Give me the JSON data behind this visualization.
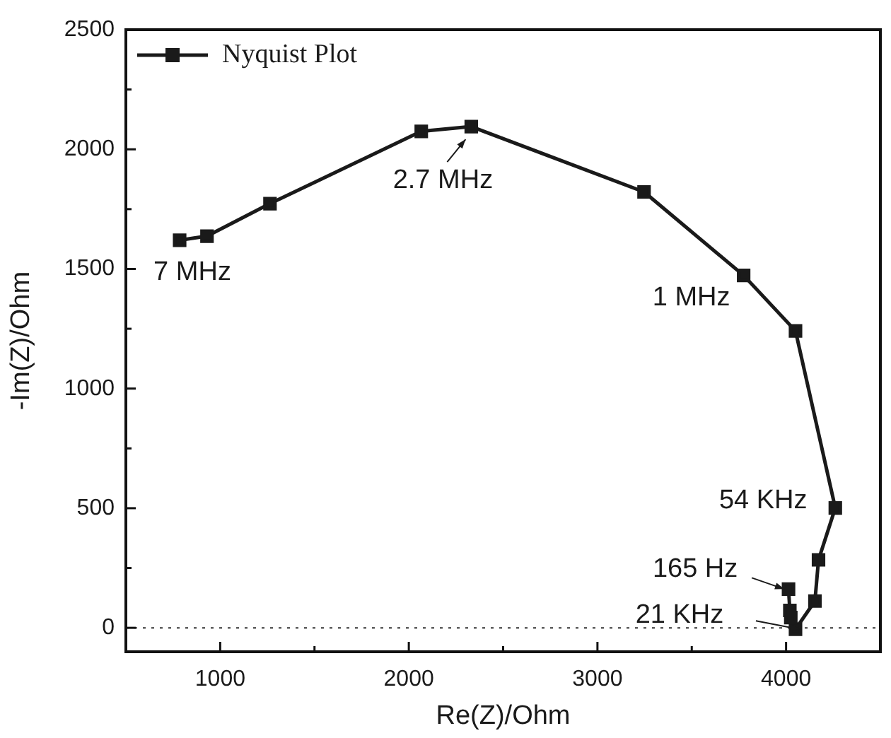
{
  "chart_data": {
    "type": "line",
    "xlabel": "Re(Z)/Ohm",
    "ylabel": "-Im(Z)/Ohm",
    "xlim": [
      500,
      4500
    ],
    "ylim": [
      -100,
      2500
    ],
    "xticks": [
      1000,
      {
        "value": 1500,
        "label": null
      },
      2000,
      {
        "value": 2500,
        "label": null
      },
      3000,
      {
        "value": 3500,
        "label": null
      },
      4000
    ],
    "yticks": [
      0,
      {
        "value": 250,
        "label": null
      },
      500,
      {
        "value": 750,
        "label": null
      },
      1000,
      {
        "value": 1250,
        "label": null
      },
      1500,
      {
        "value": 1750,
        "label": null
      },
      2000,
      {
        "value": 2250,
        "label": null
      },
      2500
    ],
    "series": [
      {
        "name": "Nyquist Plot",
        "color": "#1a1a1a",
        "x": [
          785,
          930,
          1264,
          2066,
          2331,
          3247,
          3775,
          4050,
          4261,
          4172,
          4153,
          4050,
          4025,
          4020,
          4013
        ],
        "values": [
          1620,
          1637,
          1773,
          2075,
          2095,
          1822,
          1473,
          1241,
          501,
          284,
          112,
          -6,
          43,
          73,
          162
        ]
      }
    ],
    "marker": "square",
    "line_style": "solid",
    "legend": "top left",
    "grid": false,
    "ref_lines": [
      {
        "axis": "y",
        "value": 0,
        "line_style": "dotted",
        "color": "#333333"
      }
    ],
    "annotations": [
      {
        "text": "7 MHz",
        "x": 785,
        "y": 1620
      },
      {
        "text": "2.7 MHz",
        "x": 2331,
        "y": 2095
      },
      {
        "text": "1 MHz",
        "x": 3775,
        "y": 1473
      },
      {
        "text": "54 KHz",
        "x": 4261,
        "y": 501
      },
      {
        "text": "165 Hz",
        "x": 4013,
        "y": 162
      },
      {
        "text": "21 KHz",
        "x": 4050,
        "y": -6
      }
    ]
  }
}
